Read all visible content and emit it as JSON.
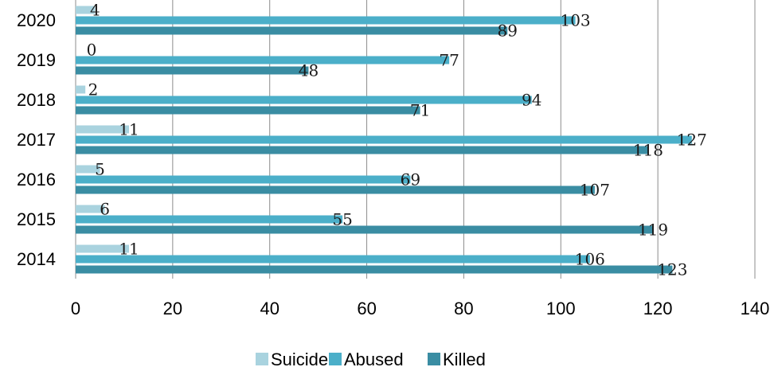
{
  "chart_data": {
    "type": "bar",
    "orientation": "horizontal",
    "title": "",
    "xlabel": "",
    "ylabel": "",
    "categories": [
      "2020",
      "2019",
      "2018",
      "2017",
      "2016",
      "2015",
      "2014"
    ],
    "series": [
      {
        "name": "Suicide",
        "color": "#a9d3df",
        "values": [
          4,
          0,
          2,
          11,
          5,
          6,
          11
        ]
      },
      {
        "name": "Abused",
        "color": "#4bafc9",
        "values": [
          103,
          77,
          94,
          127,
          69,
          55,
          106
        ]
      },
      {
        "name": "Killed",
        "color": "#3a8da3",
        "values": [
          89,
          48,
          71,
          118,
          107,
          119,
          123
        ]
      }
    ],
    "xlim": [
      0,
      140
    ],
    "x_ticks": [
      "0",
      "20",
      "40",
      "60",
      "80",
      "100",
      "120",
      "140"
    ],
    "grid": "vertical",
    "legend_position": "bottom",
    "data_labels": true
  }
}
